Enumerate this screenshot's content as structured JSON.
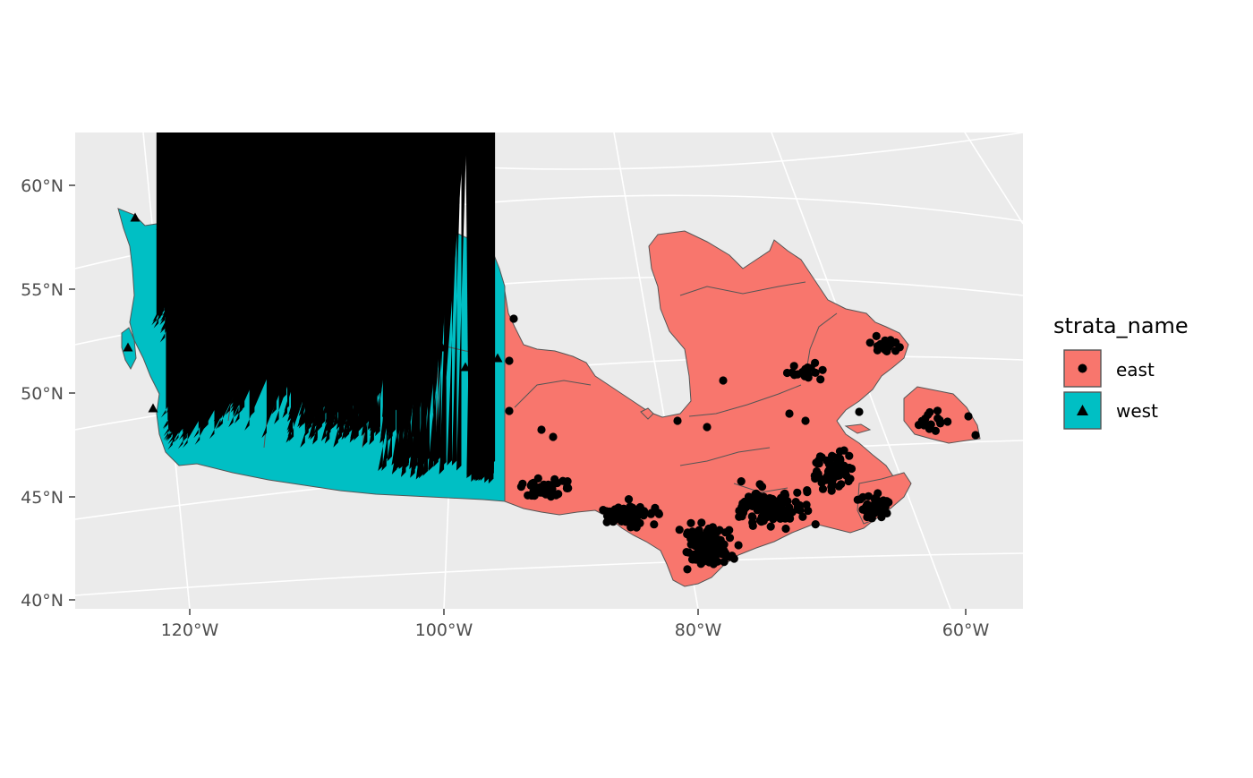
{
  "chart_data": {
    "type": "map",
    "title": "",
    "xlabel": "",
    "ylabel": "",
    "lat_ticks": [
      "60°N",
      "55°N",
      "50°N",
      "45°N",
      "40°N"
    ],
    "lon_ticks": [
      "120°W",
      "100°W",
      "80°W",
      "60°W"
    ],
    "legend": {
      "title": "strata_name",
      "placement": "right",
      "entries": [
        {
          "label": "east",
          "fill": "#F8766D",
          "shape": "circle"
        },
        {
          "label": "west",
          "fill": "#00BFC4",
          "shape": "triangle"
        }
      ]
    },
    "strata": [
      {
        "name": "east",
        "fill": "#F8766D",
        "marker": "circle"
      },
      {
        "name": "west",
        "fill": "#00BFC4",
        "marker": "triangle"
      }
    ],
    "panel_background": "#EBEBEB",
    "gridlines": true,
    "point_color": "#000000",
    "boundary_color": "#555555"
  }
}
